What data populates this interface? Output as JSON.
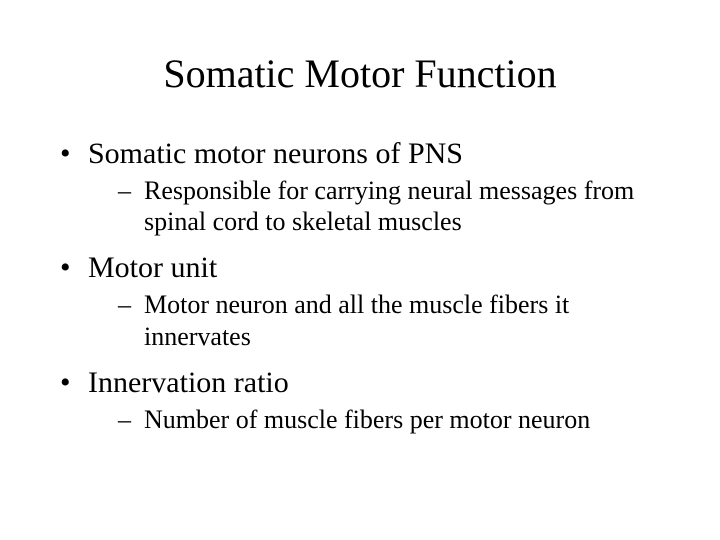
{
  "title": "Somatic Motor Function",
  "background_color": "#ffffff",
  "text_color": "#000000",
  "font_family": "Times New Roman",
  "title_fontsize": 40,
  "level1_fontsize": 30,
  "level2_fontsize": 26,
  "bullets": [
    {
      "text": "Somatic motor neurons of PNS",
      "sub": [
        "Responsible for carrying neural messages from spinal cord to skeletal muscles"
      ]
    },
    {
      "text": "Motor unit",
      "sub": [
        "Motor neuron and all the muscle fibers it innervates"
      ]
    },
    {
      "text": "Innervation ratio",
      "sub": [
        "Number of muscle fibers per motor neuron"
      ]
    }
  ]
}
